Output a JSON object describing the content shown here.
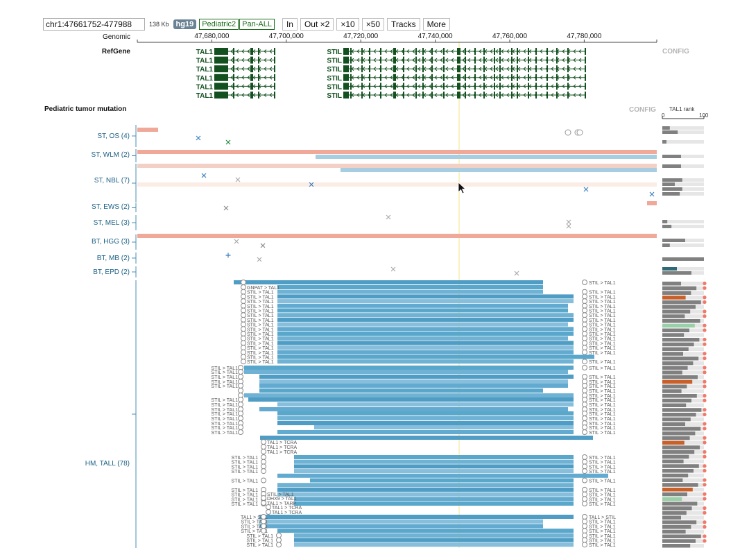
{
  "toolbar": {
    "coordinate": "chr1:47661752-477988",
    "length": "138 Kb",
    "genome": "hg19",
    "datasets": [
      "Pediatric2",
      "Pan-ALL"
    ],
    "buttons": [
      "In",
      "Out ×2",
      "×10",
      "×50",
      "Tracks",
      "More"
    ]
  },
  "ruler": {
    "label": "Genomic",
    "ticks": [
      {
        "label": "47,680,000",
        "pos": 47680000
      },
      {
        "label": "47,700,000",
        "pos": 47700000
      },
      {
        "label": "47,720,000",
        "pos": 47720000
      },
      {
        "label": "47,740,000",
        "pos": 47740000
      },
      {
        "label": "47,760,000",
        "pos": 47760000
      },
      {
        "label": "47,780,000",
        "pos": 47780000
      }
    ]
  },
  "refgene": {
    "label": "RefGene",
    "config": "CONFIG",
    "genes": [
      "TAL1",
      "STIL"
    ]
  },
  "mutation_track": {
    "label": "Pediatric tumor mutation",
    "config": "CONFIG",
    "rank_title": "TAL1 rank",
    "rank_min": "0",
    "rank_max": "100",
    "groups": [
      {
        "label": "ST, OS (4)"
      },
      {
        "label": "ST, WLM (2)"
      },
      {
        "label": "ST, NBL (7)"
      },
      {
        "label": "ST, EWS (2)"
      },
      {
        "label": "ST, MEL (3)"
      },
      {
        "label": "BT, HGG (3)"
      },
      {
        "label": "BT, MB (2)"
      },
      {
        "label": "BT, EPD (2)"
      },
      {
        "label": "HM, TALL (78)"
      }
    ],
    "fusion_labels": [
      "GNPAT > TAL1",
      "STIL > TAL1",
      "TAL1 > TCRA",
      "DHX9 > TAL1",
      "TAL1 > TARP",
      "TAL1 > STIL"
    ]
  },
  "colors": {
    "gene": "#12501f",
    "link": "#1a5f85",
    "blue": "#5aa7cc",
    "salmon": "#f0a898",
    "rank_bar": "#808080",
    "rank_orange": "#c8602a",
    "rank_green": "#9ad0a8",
    "highlight": "#f5e36a"
  }
}
